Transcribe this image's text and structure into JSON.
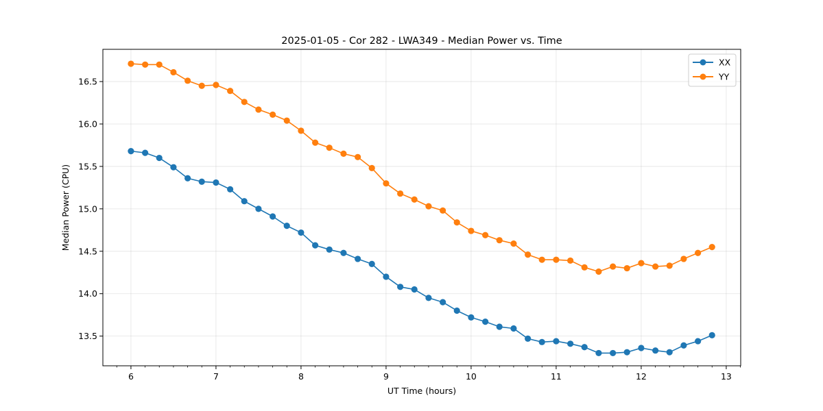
{
  "chart_data": {
    "type": "line",
    "title": "2025-01-05 - Cor 282 - LWA349 - Median Power vs. Time",
    "xlabel": "UT Time (hours)",
    "ylabel": "Median Power (CPU)",
    "xlim": [
      5.67,
      13.17
    ],
    "ylim": [
      13.15,
      16.88
    ],
    "xticks": [
      6,
      7,
      8,
      9,
      10,
      11,
      12,
      13
    ],
    "yticks": [
      13.5,
      14.0,
      14.5,
      15.0,
      15.5,
      16.0,
      16.5
    ],
    "xtick_labels": [
      "6",
      "7",
      "8",
      "9",
      "10",
      "11",
      "12",
      "13"
    ],
    "ytick_labels": [
      "13.5",
      "14.0",
      "14.5",
      "15.0",
      "15.5",
      "16.0",
      "16.5"
    ],
    "grid": true,
    "legend_position": "top-right",
    "x": [
      6.0,
      6.167,
      6.333,
      6.5,
      6.667,
      6.833,
      7.0,
      7.167,
      7.333,
      7.5,
      7.667,
      7.833,
      8.0,
      8.167,
      8.333,
      8.5,
      8.667,
      8.833,
      9.0,
      9.167,
      9.333,
      9.5,
      9.667,
      9.833,
      10.0,
      10.167,
      10.333,
      10.5,
      10.667,
      10.833,
      11.0,
      11.167,
      11.333,
      11.5,
      11.667,
      11.833,
      12.0,
      12.167,
      12.333,
      12.5,
      12.667,
      12.833
    ],
    "series": [
      {
        "name": "XX",
        "color": "#1f77b4",
        "values": [
          15.68,
          15.66,
          15.6,
          15.49,
          15.36,
          15.32,
          15.31,
          15.23,
          15.09,
          15.0,
          14.91,
          14.8,
          14.72,
          14.57,
          14.52,
          14.48,
          14.41,
          14.35,
          14.2,
          14.08,
          14.05,
          13.95,
          13.9,
          13.8,
          13.72,
          13.67,
          13.61,
          13.59,
          13.47,
          13.43,
          13.44,
          13.41,
          13.37,
          13.3,
          13.3,
          13.31,
          13.36,
          13.33,
          13.31,
          13.39,
          13.44,
          13.51
        ]
      },
      {
        "name": "YY",
        "color": "#ff7f0e",
        "values": [
          16.71,
          16.7,
          16.7,
          16.61,
          16.51,
          16.45,
          16.46,
          16.39,
          16.26,
          16.17,
          16.11,
          16.04,
          15.92,
          15.78,
          15.72,
          15.65,
          15.61,
          15.48,
          15.3,
          15.18,
          15.11,
          15.03,
          14.98,
          14.84,
          14.74,
          14.69,
          14.63,
          14.59,
          14.46,
          14.4,
          14.4,
          14.39,
          14.31,
          14.26,
          14.32,
          14.3,
          14.36,
          14.32,
          14.33,
          14.41,
          14.48,
          14.55
        ]
      }
    ]
  }
}
